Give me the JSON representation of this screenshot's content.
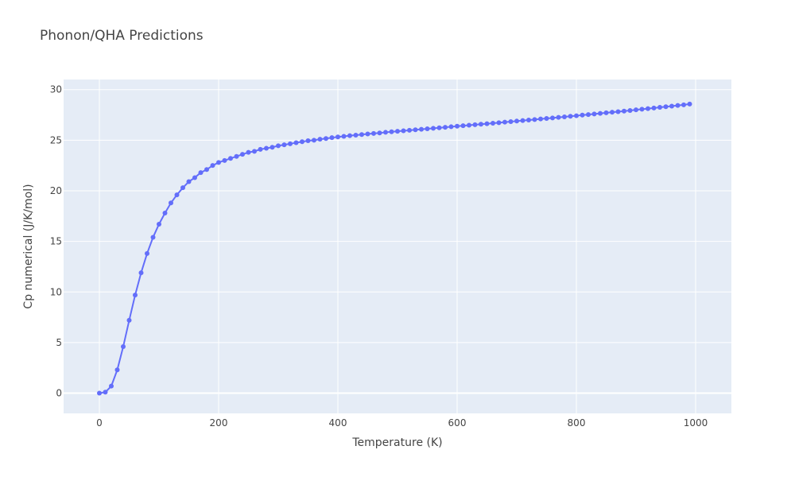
{
  "chart_data": {
    "type": "line",
    "title": "Phonon/QHA Predictions",
    "xlabel": "Temperature (K)",
    "ylabel": "Cp numerical (J/K/mol)",
    "xlim": [
      -60,
      1060
    ],
    "ylim": [
      -2,
      31
    ],
    "x_ticks": [
      0,
      200,
      400,
      600,
      800,
      1000
    ],
    "y_ticks": [
      0,
      5,
      10,
      15,
      20,
      25,
      30
    ],
    "grid": true,
    "legend": "none",
    "colors": {
      "plot_bg": "#e5ecf6",
      "grid": "#ffffff",
      "series": "#636efa"
    },
    "series": [
      {
        "mode": "lines+markers",
        "x": [
          0,
          10,
          20,
          30,
          40,
          50,
          60,
          70,
          80,
          90,
          100,
          110,
          120,
          130,
          140,
          150,
          160,
          170,
          180,
          190,
          200,
          210,
          220,
          230,
          240,
          250,
          260,
          270,
          280,
          290,
          300,
          310,
          320,
          330,
          340,
          350,
          360,
          370,
          380,
          390,
          400,
          410,
          420,
          430,
          440,
          450,
          460,
          470,
          480,
          490,
          500,
          510,
          520,
          530,
          540,
          550,
          560,
          570,
          580,
          590,
          600,
          610,
          620,
          630,
          640,
          650,
          660,
          670,
          680,
          690,
          700,
          710,
          720,
          730,
          740,
          750,
          760,
          770,
          780,
          790,
          800,
          810,
          820,
          830,
          840,
          850,
          860,
          870,
          880,
          890,
          900,
          910,
          920,
          930,
          940,
          950,
          960,
          970,
          980,
          990
        ],
        "y": [
          0.0,
          0.1,
          0.7,
          2.3,
          4.6,
          7.2,
          9.7,
          11.9,
          13.8,
          15.4,
          16.7,
          17.8,
          18.8,
          19.6,
          20.3,
          20.9,
          21.3,
          21.8,
          22.1,
          22.5,
          22.8,
          23.0,
          23.2,
          23.4,
          23.6,
          23.8,
          23.9,
          24.1,
          24.2,
          24.3,
          24.45,
          24.55,
          24.65,
          24.75,
          24.85,
          24.95,
          25.0,
          25.1,
          25.17,
          25.25,
          25.32,
          25.38,
          25.45,
          25.5,
          25.56,
          25.62,
          25.67,
          25.72,
          25.78,
          25.83,
          25.88,
          25.93,
          25.98,
          26.03,
          26.08,
          26.13,
          26.18,
          26.23,
          26.28,
          26.33,
          26.38,
          26.43,
          26.48,
          26.53,
          26.58,
          26.63,
          26.68,
          26.73,
          26.79,
          26.84,
          26.89,
          26.94,
          26.99,
          27.04,
          27.1,
          27.15,
          27.2,
          27.26,
          27.31,
          27.37,
          27.42,
          27.48,
          27.53,
          27.59,
          27.65,
          27.71,
          27.77,
          27.82,
          27.88,
          27.94,
          28.0,
          28.06,
          28.12,
          28.18,
          28.25,
          28.31,
          28.37,
          28.44,
          28.5,
          28.57
        ]
      }
    ]
  }
}
